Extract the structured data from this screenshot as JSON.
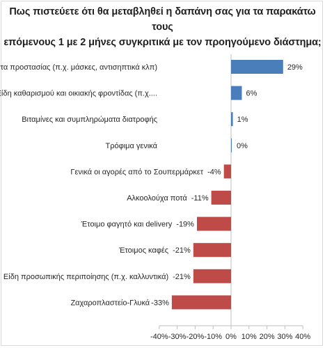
{
  "chart_data": {
    "type": "bar",
    "orientation": "horizontal",
    "title_line1": "Πως πιστεύετε ότι θα μεταβληθεί η δαπάνη σας για τα παρακάτω τους",
    "title_line2": "επόμενους 1 με 2 μήνες συγκριτικά με τον προηγούμενο διάστημα;",
    "categories": [
      "Προϊόντα προστασίας (π.χ. μάσκες, αντισηπτικά κλπ)",
      "Είδη καθαρισμού και οικιακής φροντίδας (π.χ....",
      "Βιταμίνες και συμπληρώματα διατροφής",
      "Τρόφιμα γενικά",
      "Γενικά οι αγορές από το Σουπερμάρκετ",
      "Αλκοολούχα ποτά",
      "Έτοιμο φαγητό και delivery",
      "Έτοιμος καφές",
      "Είδη προσωπικής περιποίησης (π.χ. καλλυντικά)",
      "Ζαχαροπλαστείο-Γλυκά"
    ],
    "values": [
      29,
      6,
      1,
      0,
      -4,
      -11,
      -19,
      -21,
      -21,
      -33
    ],
    "value_labels": [
      "29%",
      "6%",
      "1%",
      "0%",
      "-4%",
      "-11%",
      "-19%",
      "-21%",
      "-21%",
      "-33%"
    ],
    "xlim": [
      -40,
      40
    ],
    "x_ticks": [
      -40,
      -30,
      -20,
      -10,
      0,
      10,
      20,
      30,
      40
    ],
    "x_tick_labels": [
      "-40%",
      "-30%",
      "-20%",
      "-10%",
      "0%",
      "10%",
      "20%",
      "30%",
      "40%"
    ],
    "grid": false,
    "colors": {
      "positive": "#4a7ebb",
      "negative": "#be4b48",
      "axis": "#bfbfbf"
    }
  }
}
